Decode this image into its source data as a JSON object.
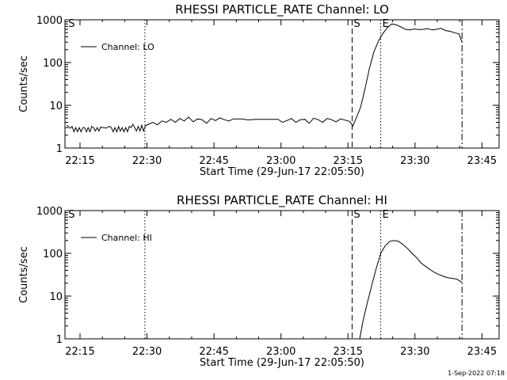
{
  "footer_date": "1-Sep-2022 07:18",
  "chart_data": [
    {
      "type": "line",
      "title": "RHESSI PARTICLE_RATE Channel: LO",
      "xlabel": "Start Time (29-Jun-17 22:05:50)",
      "ylabel": "Counts/sec",
      "y_scale": "log",
      "ylim": [
        1,
        1000
      ],
      "xlim_min": [
        5.8,
        103
      ],
      "x_ticks": [
        {
          "m": 9.17,
          "label": "22:15"
        },
        {
          "m": 24.17,
          "label": "22:30"
        },
        {
          "m": 39.17,
          "label": "22:45"
        },
        {
          "m": 54.17,
          "label": "23:00"
        },
        {
          "m": 69.17,
          "label": "23:15"
        },
        {
          "m": 84.17,
          "label": "23:30"
        },
        {
          "m": 99.17,
          "label": "23:45"
        }
      ],
      "y_ticks": [
        {
          "v": 1,
          "label": "1"
        },
        {
          "v": 10,
          "label": "10"
        },
        {
          "v": 100,
          "label": "100"
        },
        {
          "v": 1000,
          "label": "1000"
        }
      ],
      "legend": "Channel: LO",
      "markers": [
        {
          "label": "S",
          "m": 70.1,
          "style": "dashed"
        },
        {
          "label": "E",
          "m": 76.5,
          "style": "dotted"
        },
        {
          "label": "S",
          "m": 6.2,
          "style": "none"
        }
      ],
      "extra_lines": [
        {
          "m": 23.7,
          "style": "dotted"
        },
        {
          "m": 94.7,
          "style": "dashdot"
        }
      ],
      "series": [
        {
          "x": [
            6.2,
            7.0,
            7.4,
            7.8,
            8.2,
            8.6,
            9.0,
            9.4,
            9.8,
            10.2,
            10.6,
            11.0,
            11.4,
            11.8,
            12.2,
            12.6,
            13.0,
            13.4,
            13.8,
            14.2,
            14.6,
            15.0,
            15.4,
            15.8,
            16.2,
            16.6,
            17.0,
            17.4,
            17.8,
            18.2,
            18.6,
            19.0,
            19.4,
            19.8,
            20.2,
            20.6,
            21.0,
            21.4,
            21.8,
            22.2,
            22.6,
            23.0,
            23.4,
            23.8,
            24.5,
            25.5,
            26.5,
            27.5,
            28.5,
            29.5,
            30.5,
            31.5,
            32.5,
            33.5,
            34.5,
            35.5,
            36.5,
            37.5,
            38.5,
            39.5,
            40.5,
            41.5,
            42.5,
            43.5,
            44.5,
            45.5,
            46.5,
            47.5,
            48.5,
            49.5,
            50.5,
            51.5,
            52.5,
            53.5,
            54.5,
            55.5,
            56.5,
            57.5,
            58.5,
            59.5,
            60.5,
            61.5,
            62.5,
            63.5,
            64.5,
            65.5,
            66.5,
            67.5,
            68.5,
            69.5,
            70.3,
            71.0,
            72.0,
            73.0,
            74.0,
            75.0,
            76.0,
            77.0,
            78.0,
            79.0,
            80.0,
            81.0,
            82.0,
            83.0,
            84.0,
            85.0,
            86.0,
            87.0,
            88.0,
            89.0,
            90.0,
            91.0,
            92.0,
            93.0,
            94.0,
            94.7
          ],
          "values": [
            3.4,
            2.9,
            3.2,
            2.4,
            3.0,
            2.4,
            3.0,
            2.4,
            3.0,
            3.0,
            2.4,
            3.0,
            2.4,
            3.2,
            3.0,
            2.5,
            3.0,
            2.5,
            3.1,
            3.0,
            3.0,
            2.9,
            3.1,
            3.2,
            3.0,
            2.4,
            3.0,
            2.4,
            3.2,
            2.5,
            3.0,
            2.4,
            3.0,
            2.4,
            3.2,
            3.0,
            3.6,
            3.0,
            2.5,
            3.2,
            2.5,
            3.4,
            2.5,
            3.3,
            3.6,
            4.0,
            3.5,
            4.3,
            4.0,
            4.7,
            4.0,
            4.9,
            4.3,
            5.3,
            4.1,
            4.8,
            4.6,
            3.8,
            4.9,
            4.4,
            5.1,
            4.6,
            4.3,
            4.8,
            4.8,
            4.8,
            4.6,
            4.6,
            4.7,
            4.7,
            4.7,
            4.7,
            4.7,
            4.7,
            4.0,
            4.4,
            4.9,
            4.0,
            4.6,
            4.7,
            3.8,
            5.0,
            4.6,
            4.0,
            4.9,
            4.6,
            4.1,
            4.8,
            4.5,
            4.2,
            3.3,
            5.0,
            9,
            25,
            75,
            180,
            320,
            480,
            660,
            800,
            760,
            680,
            600,
            580,
            610,
            590,
            600,
            620,
            580,
            600,
            630,
            560,
            540,
            500,
            470,
            300
          ],
          "color": "#000000"
        }
      ]
    },
    {
      "type": "line",
      "title": "RHESSI PARTICLE_RATE Channel: HI",
      "xlabel": "Start Time (29-Jun-17 22:05:50)",
      "ylabel": "Counts/sec",
      "y_scale": "log",
      "ylim": [
        1,
        1000
      ],
      "xlim_min": [
        5.8,
        103
      ],
      "x_ticks": [
        {
          "m": 9.17,
          "label": "22:15"
        },
        {
          "m": 24.17,
          "label": "22:30"
        },
        {
          "m": 39.17,
          "label": "22:45"
        },
        {
          "m": 54.17,
          "label": "23:00"
        },
        {
          "m": 69.17,
          "label": "23:15"
        },
        {
          "m": 84.17,
          "label": "23:30"
        },
        {
          "m": 99.17,
          "label": "23:45"
        }
      ],
      "y_ticks": [
        {
          "v": 1,
          "label": "1"
        },
        {
          "v": 10,
          "label": "10"
        },
        {
          "v": 100,
          "label": "100"
        },
        {
          "v": 1000,
          "label": "1000"
        }
      ],
      "legend": "Channel: HI",
      "markers": [
        {
          "label": "S",
          "m": 70.1,
          "style": "dashed"
        },
        {
          "label": "E",
          "m": 76.5,
          "style": "dotted"
        },
        {
          "label": "S",
          "m": 6.2,
          "style": "none"
        }
      ],
      "extra_lines": [
        {
          "m": 23.7,
          "style": "dotted"
        },
        {
          "m": 94.7,
          "style": "dashdot"
        }
      ],
      "series": [
        {
          "x": [
            71.8,
            72.5,
            73.5,
            74.5,
            75.5,
            76.5,
            77.5,
            78.5,
            79.5,
            80.5,
            81.5,
            82.5,
            83.5,
            84.5,
            85.5,
            86.5,
            87.5,
            88.5,
            89.5,
            90.5,
            91.5,
            92.5,
            93.5,
            94.7
          ],
          "values": [
            1,
            2.5,
            7,
            18,
            45,
            100,
            150,
            190,
            200,
            190,
            160,
            130,
            100,
            80,
            60,
            50,
            42,
            36,
            32,
            29,
            27,
            26,
            25,
            21
          ],
          "color": "#000000"
        }
      ]
    }
  ]
}
